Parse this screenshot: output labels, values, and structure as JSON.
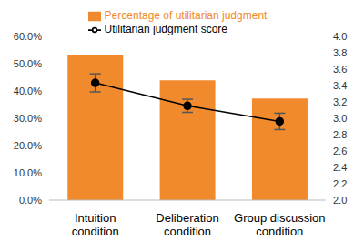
{
  "chart_data": {
    "type": "bar",
    "categories": [
      "Intuition condition",
      "Deliberation condition",
      "Group discussion condition"
    ],
    "series": [
      {
        "name": "Percentage of utilitarian judgment",
        "type": "bar",
        "color": "#f08a2c",
        "values": [
          53.0,
          43.8,
          37.2
        ]
      },
      {
        "name": "Utilitarian judgment score",
        "type": "line",
        "axis": "y2",
        "color": "#000000",
        "marker": "circle",
        "values": [
          3.43,
          3.15,
          2.96
        ],
        "errors": [
          0.11,
          0.08,
          0.1
        ]
      }
    ],
    "ylim": [
      0,
      60
    ],
    "yticks": [
      {
        "value": 0,
        "label": "0.0%"
      },
      {
        "value": 10,
        "label": "10.0%"
      },
      {
        "value": 20,
        "label": "20.0%"
      },
      {
        "value": 30,
        "label": "30.0%"
      },
      {
        "value": 40,
        "label": "40.0%"
      },
      {
        "value": 50,
        "label": "50.0%"
      },
      {
        "value": 60,
        "label": "60.0%"
      }
    ],
    "y2lim": [
      2,
      4
    ],
    "y2ticks": [
      {
        "value": 2,
        "label": "2.0"
      },
      {
        "value": 2.2,
        "label": "2.2"
      },
      {
        "value": 2.4,
        "label": "2.4"
      },
      {
        "value": 2.6,
        "label": "2.6"
      },
      {
        "value": 2.8,
        "label": "2.8"
      },
      {
        "value": 3,
        "label": "3.0"
      },
      {
        "value": 3.2,
        "label": "3.2"
      },
      {
        "value": 3.4,
        "label": "3.4"
      },
      {
        "value": 3.6,
        "label": "3.6"
      },
      {
        "value": 3.8,
        "label": "3.8"
      },
      {
        "value": 4,
        "label": "4.0"
      }
    ],
    "grid": false,
    "legend": "top"
  }
}
